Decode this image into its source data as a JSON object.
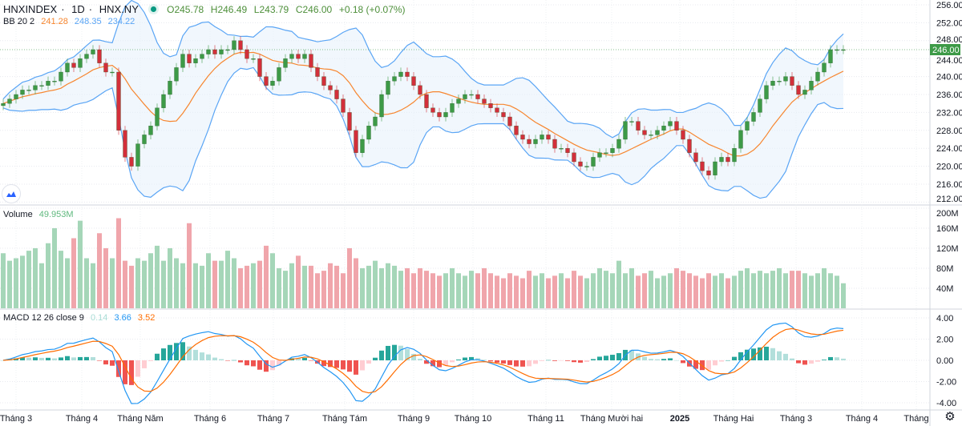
{
  "header": {
    "symbol": "HNXINDEX",
    "interval": "1D",
    "exchange": "HNX.NY",
    "status_color": "#089981",
    "open": "O245.78",
    "high": "H246.49",
    "low": "L243.79",
    "close": "C246.00",
    "change": "+0.18 (+0.07%)"
  },
  "bb_legend": {
    "name": "BB 20 2",
    "basis": "241.28",
    "upper": "248.35",
    "lower": "234.22"
  },
  "volume_legend": {
    "name": "Volume",
    "value": "49.953M"
  },
  "macd_legend": {
    "name": "MACD 12 26 close 9",
    "hist": "0.14",
    "macd": "3.66",
    "signal": "3.52"
  },
  "last_price_label": "246.00",
  "colors": {
    "up": "#3d9a47",
    "down": "#d32f3a",
    "vol_up": "#a5d6b8",
    "vol_down": "#f0a5ab",
    "bb_basis": "#f7862f",
    "bb_band": "#5aa5f5",
    "macd": "#2196f3",
    "signal": "#ff6d00",
    "hist_up": "#26a69a",
    "hist_down": "#ef5350"
  },
  "chart_data": {
    "type": "candlestick",
    "price_axis": {
      "ticks": [
        "256.00",
        "252.00",
        "248.00",
        "244.00",
        "240.00",
        "236.00",
        "232.00",
        "228.00",
        "224.00",
        "220.00",
        "216.00",
        "212.00"
      ],
      "range": [
        212,
        256
      ]
    },
    "volume_axis": {
      "ticks": [
        "200M",
        "160M",
        "120M",
        "80M",
        "40M"
      ],
      "range": [
        0,
        200
      ]
    },
    "macd_axis": {
      "ticks": [
        "4.00",
        "2.00",
        "0.00",
        "-2.00",
        "-4.00"
      ],
      "range": [
        -4.6,
        4.6
      ]
    },
    "time_axis": [
      "Tháng 3",
      "Tháng 4",
      "Tháng Năm",
      "Tháng 6",
      "Tháng 7",
      "Tháng Tám",
      "Tháng 9",
      "Tháng 10",
      "Tháng 11",
      "Tháng Mười hai",
      "2025",
      "Tháng Hai",
      "Tháng 3",
      "Tháng 4",
      "Tháng"
    ],
    "closes": [
      234,
      235,
      236,
      237,
      237,
      238,
      238,
      239,
      239,
      241,
      243,
      242,
      244,
      245,
      246,
      243,
      241,
      241,
      228,
      222,
      220,
      225,
      227,
      229,
      233,
      236,
      239,
      242,
      245,
      243,
      244,
      245,
      246,
      245,
      246,
      246,
      248,
      246,
      244,
      244,
      240,
      238,
      239,
      242,
      244,
      245,
      244,
      245,
      242,
      240,
      238,
      237,
      235,
      232,
      228,
      223,
      226,
      229,
      231,
      236,
      239,
      240,
      241,
      240,
      238,
      236,
      233,
      232,
      231,
      232,
      234,
      235,
      236,
      236,
      235,
      234,
      233,
      232,
      231,
      229,
      227,
      226,
      225,
      226,
      227,
      226,
      224,
      224,
      223,
      221,
      220,
      220,
      222,
      223,
      223,
      224,
      226,
      230,
      230,
      228,
      227,
      227,
      228,
      229,
      230,
      228,
      226,
      223,
      221,
      219,
      218,
      221,
      222,
      221,
      224,
      228,
      230,
      232,
      235,
      238,
      239,
      239,
      240,
      238,
      236,
      237,
      239,
      241,
      243,
      246,
      246,
      246
    ],
    "volumes": [
      110,
      95,
      100,
      105,
      115,
      120,
      90,
      130,
      160,
      115,
      100,
      140,
      175,
      100,
      90,
      150,
      120,
      100,
      180,
      95,
      85,
      100,
      95,
      110,
      125,
      95,
      120,
      100,
      90,
      170,
      90,
      85,
      110,
      95,
      95,
      115,
      100,
      80,
      85,
      90,
      95,
      125,
      110,
      80,
      75,
      90,
      105,
      85,
      85,
      70,
      75,
      90,
      85,
      70,
      120,
      100,
      80,
      85,
      95,
      80,
      90,
      85,
      75,
      80,
      70,
      80,
      75,
      70,
      65,
      70,
      80,
      70,
      65,
      75,
      70,
      80,
      70,
      65,
      60,
      70,
      65,
      60,
      75,
      65,
      70,
      60,
      65,
      70,
      60,
      75,
      65,
      60,
      70,
      80,
      75,
      70,
      95,
      70,
      80,
      65,
      70,
      75,
      60,
      65,
      70,
      80,
      75,
      70,
      65,
      60,
      70,
      65,
      70,
      60,
      65,
      75,
      80,
      70,
      75,
      70,
      75,
      80,
      70,
      75,
      75,
      70,
      65,
      70,
      80,
      70,
      65,
      50
    ]
  }
}
